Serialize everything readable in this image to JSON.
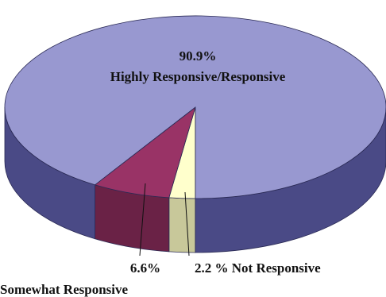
{
  "chart_data": {
    "type": "pie",
    "style": "3d",
    "slices": [
      {
        "label": "Highly Responsive/Responsive",
        "value": 90.9,
        "value_label": "90.9%",
        "color": "#9898d0",
        "side_color": "#4a4a86"
      },
      {
        "label": "Somewhat Responsive",
        "value": 6.6,
        "value_label": "6.6%",
        "color": "#993366",
        "side_color": "#6a2246"
      },
      {
        "label": "Not Responsive",
        "value": 2.2,
        "value_label": "2.2 % Not Responsive",
        "color": "#ffffcc",
        "side_color": "#c8c89a"
      }
    ]
  }
}
